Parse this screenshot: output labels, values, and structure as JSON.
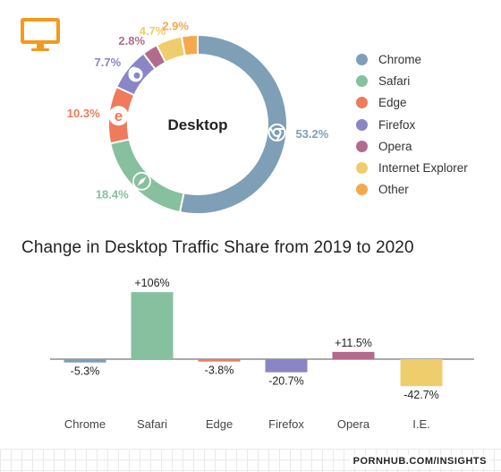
{
  "colors": {
    "Chrome": "#7f9fb7",
    "Safari": "#87c09e",
    "Edge": "#ef7a5c",
    "Firefox": "#8a86c4",
    "Opera": "#b26b8c",
    "Internet Explorer": "#efcd6c",
    "Other": "#f6a84f",
    "monitor": "#f39a1e"
  },
  "icons": {
    "monitor": "monitor-icon",
    "Chrome": "chrome-icon",
    "Safari": "safari-icon",
    "Edge": "edge-icon",
    "Firefox": "firefox-icon"
  },
  "chart_data": [
    {
      "type": "pie",
      "title": "",
      "center_label": "Desktop",
      "categories": [
        "Chrome",
        "Safari",
        "Edge",
        "Firefox",
        "Opera",
        "Internet Explorer",
        "Other"
      ],
      "values": [
        53.2,
        18.4,
        10.3,
        7.7,
        2.8,
        4.7,
        2.9
      ],
      "value_labels": [
        "53.2%",
        "18.4%",
        "10.3%",
        "7.7%",
        "2.8%",
        "4.7%",
        "2.9%"
      ],
      "legend": [
        "Chrome",
        "Safari",
        "Edge",
        "Firefox",
        "Opera",
        "Internet Explorer",
        "Other"
      ],
      "legend_position": "right"
    },
    {
      "type": "bar",
      "title": "Change in Desktop Traffic Share from 2019 to 2020",
      "categories": [
        "Chrome",
        "Safari",
        "Edge",
        "Firefox",
        "Opera",
        "I.E."
      ],
      "series_keys": [
        "Chrome",
        "Safari",
        "Edge",
        "Firefox",
        "Opera",
        "Internet Explorer"
      ],
      "values": [
        -5.3,
        106,
        -3.8,
        -20.7,
        11.5,
        -42.7
      ],
      "value_labels": [
        "-5.3%",
        "+106%",
        "-3.8%",
        "-20.7%",
        "+11.5%",
        "-42.7%"
      ],
      "grid": false
    }
  ],
  "footer": {
    "source": "PORNHUB.COM/INSIGHTS"
  }
}
